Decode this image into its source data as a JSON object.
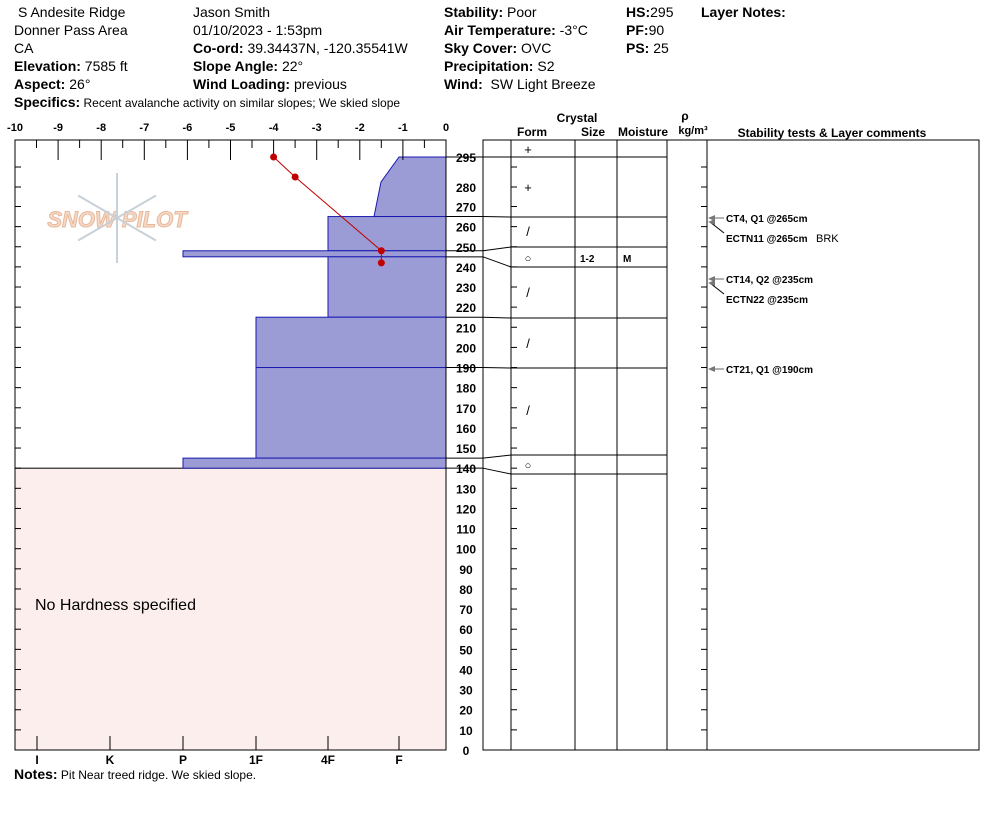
{
  "header": {
    "location": "S Andesite Ridge",
    "area": "Donner Pass Area",
    "state": "CA",
    "elevation_label": "Elevation:",
    "elevation": "7585 ft",
    "aspect_label": "Aspect:",
    "aspect": "26°",
    "observer": "Jason Smith",
    "datetime": "01/10/2023 - 1:53pm",
    "coord_label": "Co-ord:",
    "coord": "39.34437N, -120.35541W",
    "slope_label": "Slope Angle:",
    "slope": "22°",
    "wind_loading_label": "Wind Loading:",
    "wind_loading": "previous",
    "stability_label": "Stability:",
    "stability": "Poor",
    "air_temp_label": "Air Temperature:",
    "air_temp": "-3°C",
    "sky_label": "Sky Cover:",
    "sky": "OVC",
    "precip_label": "Precipitation:",
    "precip": "S2",
    "wind_label": "Wind:",
    "wind": "SW Light Breeze",
    "hs_label": "HS:",
    "hs": "295",
    "pf_label": "PF:",
    "pf": "90",
    "ps_label": "PS:",
    "ps": "25",
    "layer_notes_label": "Layer Notes:",
    "specifics_label": "Specifics:",
    "specifics": "Recent avalanche activity on similar slopes; We skied slope",
    "notes_label": "Notes:",
    "notes": "Pit Near treed ridge.  We skied slope."
  },
  "chart_data": {
    "type": "snow-profile",
    "temp_axis": {
      "ticks": [
        "-10",
        "-9",
        "-8",
        "-7",
        "-6",
        "-5",
        "-4",
        "-3",
        "-2",
        "-1",
        "0"
      ],
      "range": [
        -10,
        0
      ]
    },
    "hardness_axis": [
      "I",
      "K",
      "P",
      "1F",
      "4F",
      "F"
    ],
    "height_ticks": [
      "295",
      "280",
      "270",
      "260",
      "250",
      "240",
      "230",
      "220",
      "210",
      "200",
      "190",
      "180",
      "170",
      "160",
      "150",
      "140",
      "130",
      "120",
      "110",
      "100",
      "90",
      "80",
      "70",
      "60",
      "50",
      "40",
      "30",
      "20",
      "10",
      "0"
    ],
    "layers": [
      {
        "top": 295,
        "bottom": 265,
        "hardness_top": "F",
        "hardness_bottom": "F+",
        "form": "+",
        "size": "",
        "moisture": ""
      },
      {
        "top": 265,
        "bottom": 248,
        "hardness": "4F",
        "form": "/",
        "size": "",
        "moisture": ""
      },
      {
        "top": 248,
        "bottom": 245,
        "hardness": "P",
        "form": "○",
        "size": "1-2",
        "moisture": "M"
      },
      {
        "top": 245,
        "bottom": 215,
        "hardness": "4F",
        "form": "/",
        "size": "",
        "moisture": ""
      },
      {
        "top": 215,
        "bottom": 190,
        "hardness": "1F",
        "form": "/",
        "size": "",
        "moisture": ""
      },
      {
        "top": 190,
        "bottom": 145,
        "hardness": "1F",
        "form": "/",
        "size": "",
        "moisture": ""
      },
      {
        "top": 145,
        "bottom": 140,
        "hardness": "P",
        "form": "○",
        "size": "",
        "moisture": ""
      }
    ],
    "temperature": [
      {
        "h": 295,
        "t": -4
      },
      {
        "h": 285,
        "t": -3.5
      },
      {
        "h": 248,
        "t": -1.5
      },
      {
        "h": 242,
        "t": -1.5
      }
    ],
    "no_hardness_text": "No Hardness specified",
    "columns": {
      "crystal": "Crystal",
      "form": "Form",
      "size": "Size",
      "moisture": "Moisture",
      "rho": "ρ",
      "density": "kg/m³",
      "tests": "Stability tests & Layer comments"
    },
    "tests": [
      {
        "text": "CT4, Q1 @265cm",
        "h": 265
      },
      {
        "text": "ECTN11 @265cm",
        "extra": "BRK",
        "h": 265
      },
      {
        "text": "CT14, Q2 @235cm",
        "h": 235
      },
      {
        "text": "ECTN22 @235cm",
        "h": 235
      },
      {
        "text": "CT21, Q1 @190cm",
        "h": 190
      }
    ],
    "logo": "SNOW PILOT"
  }
}
